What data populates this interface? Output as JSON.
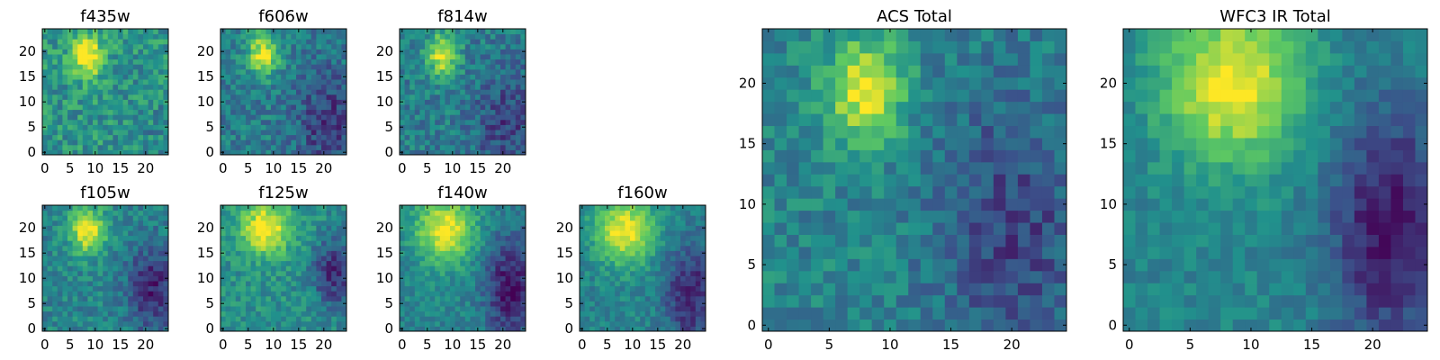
{
  "figure": {
    "colormap": "viridis",
    "colormap_stops": [
      "#440154",
      "#3b528b",
      "#21918c",
      "#5ec962",
      "#fde725"
    ]
  },
  "chart_data": [
    {
      "type": "heatmap",
      "title": "f435w",
      "xlabel": "",
      "ylabel": "",
      "grid_size": 25,
      "xlim": [
        0,
        24
      ],
      "ylim": [
        0,
        24
      ],
      "xticks": [
        "0",
        "5",
        "10",
        "15",
        "20"
      ],
      "yticks": [
        "0",
        "5",
        "10",
        "15",
        "20"
      ],
      "peak": {
        "x": 8.5,
        "y": 19,
        "sx": 2.2,
        "sy": 2.8
      },
      "base": 0.52,
      "noise": 0.16,
      "dark_region": {
        "x": 21,
        "y": 5,
        "sx": 4,
        "sy": 6,
        "depth": 0.05
      },
      "seed": 11
    },
    {
      "type": "heatmap",
      "title": "f606w",
      "xlabel": "",
      "ylabel": "",
      "grid_size": 25,
      "xlim": [
        0,
        24
      ],
      "ylim": [
        0,
        24
      ],
      "xticks": [
        "0",
        "5",
        "10",
        "15",
        "20"
      ],
      "yticks": [
        "0",
        "5",
        "10",
        "15",
        "20"
      ],
      "peak": {
        "x": 8,
        "y": 19.5,
        "sx": 2.2,
        "sy": 3
      },
      "base": 0.42,
      "noise": 0.14,
      "dark_region": {
        "x": 21,
        "y": 6,
        "sx": 4.5,
        "sy": 7,
        "depth": 0.25
      },
      "seed": 23
    },
    {
      "type": "heatmap",
      "title": "f814w",
      "xlabel": "",
      "ylabel": "",
      "grid_size": 25,
      "xlim": [
        0,
        24
      ],
      "ylim": [
        0,
        24
      ],
      "xticks": [
        "0",
        "5",
        "10",
        "15",
        "20"
      ],
      "yticks": [
        "0",
        "5",
        "10",
        "15",
        "20"
      ],
      "peak": {
        "x": 8,
        "y": 19.5,
        "sx": 2.2,
        "sy": 3
      },
      "base": 0.42,
      "noise": 0.14,
      "dark_region": {
        "x": 21,
        "y": 6,
        "sx": 4.5,
        "sy": 7,
        "depth": 0.22
      },
      "seed": 37
    },
    {
      "type": "heatmap",
      "title": "f105w",
      "xlabel": "",
      "ylabel": "",
      "grid_size": 25,
      "xlim": [
        0,
        24
      ],
      "ylim": [
        0,
        24
      ],
      "xticks": [
        "0",
        "5",
        "10",
        "15",
        "20"
      ],
      "yticks": [
        "0",
        "5",
        "10",
        "15",
        "20"
      ],
      "peak": {
        "x": 8.5,
        "y": 19.5,
        "sx": 2.5,
        "sy": 3.2
      },
      "base": 0.45,
      "noise": 0.12,
      "dark_region": {
        "x": 21.5,
        "y": 8,
        "sx": 3.5,
        "sy": 6,
        "depth": 0.35
      },
      "seed": 41
    },
    {
      "type": "heatmap",
      "title": "f125w",
      "xlabel": "",
      "ylabel": "",
      "grid_size": 25,
      "xlim": [
        0,
        24
      ],
      "ylim": [
        0,
        24
      ],
      "xticks": [
        "0",
        "5",
        "10",
        "15",
        "20"
      ],
      "yticks": [
        "0",
        "5",
        "10",
        "15",
        "20"
      ],
      "peak": {
        "x": 8.5,
        "y": 20,
        "sx": 3.5,
        "sy": 3.5
      },
      "base": 0.5,
      "noise": 0.12,
      "dark_region": {
        "x": 22,
        "y": 11,
        "sx": 3,
        "sy": 5,
        "depth": 0.35
      },
      "seed": 53
    },
    {
      "type": "heatmap",
      "title": "f140w",
      "xlabel": "",
      "ylabel": "",
      "grid_size": 25,
      "xlim": [
        0,
        24
      ],
      "ylim": [
        0,
        24
      ],
      "xticks": [
        "0",
        "5",
        "10",
        "15",
        "20"
      ],
      "yticks": [
        "0",
        "5",
        "10",
        "15",
        "20"
      ],
      "peak": {
        "x": 8.5,
        "y": 19.5,
        "sx": 4,
        "sy": 4.5
      },
      "base": 0.45,
      "noise": 0.1,
      "dark_region": {
        "x": 21.5,
        "y": 8,
        "sx": 3.5,
        "sy": 7,
        "depth": 0.4
      },
      "seed": 67
    },
    {
      "type": "heatmap",
      "title": "f160w",
      "xlabel": "",
      "ylabel": "",
      "grid_size": 25,
      "xlim": [
        0,
        24
      ],
      "ylim": [
        0,
        24
      ],
      "xticks": [
        "0",
        "5",
        "10",
        "15",
        "20"
      ],
      "yticks": [
        "0",
        "5",
        "10",
        "15",
        "20"
      ],
      "peak": {
        "x": 8.5,
        "y": 19.5,
        "sx": 4,
        "sy": 4.5
      },
      "base": 0.45,
      "noise": 0.1,
      "dark_region": {
        "x": 21.5,
        "y": 7,
        "sx": 3.5,
        "sy": 7,
        "depth": 0.35
      },
      "seed": 79
    },
    {
      "type": "heatmap",
      "title": "ACS Total",
      "xlabel": "",
      "ylabel": "",
      "grid_size": 25,
      "xlim": [
        0,
        24
      ],
      "ylim": [
        0,
        24
      ],
      "xticks": [
        "0",
        "5",
        "10",
        "15",
        "20"
      ],
      "yticks": [
        "0",
        "5",
        "10",
        "15",
        "20"
      ],
      "peak": {
        "x": 8,
        "y": 19.5,
        "sx": 2.2,
        "sy": 3
      },
      "base": 0.45,
      "noise": 0.12,
      "dark_region": {
        "x": 20,
        "y": 8,
        "sx": 4.5,
        "sy": 8,
        "depth": 0.25
      },
      "seed": 97
    },
    {
      "type": "heatmap",
      "title": "WFC3 IR Total",
      "xlabel": "",
      "ylabel": "",
      "grid_size": 25,
      "xlim": [
        0,
        24
      ],
      "ylim": [
        0,
        24
      ],
      "xticks": [
        "0",
        "5",
        "10",
        "15",
        "20"
      ],
      "yticks": [
        "0",
        "5",
        "10",
        "15",
        "20"
      ],
      "peak": {
        "x": 8.5,
        "y": 20,
        "sx": 4,
        "sy": 4.5
      },
      "base": 0.45,
      "noise": 0.08,
      "dark_region": {
        "x": 21.5,
        "y": 8,
        "sx": 3.5,
        "sy": 7,
        "depth": 0.4
      },
      "seed": 113
    }
  ]
}
